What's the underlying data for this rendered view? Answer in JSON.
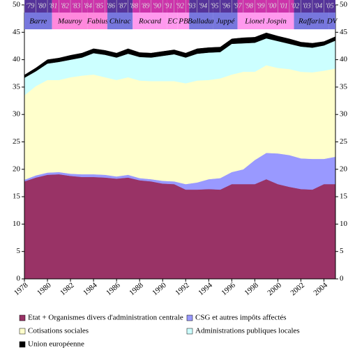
{
  "chart_data": {
    "type": "stacked_area",
    "x": [
      1978,
      1979,
      1980,
      1981,
      1982,
      1983,
      1984,
      1985,
      1986,
      1987,
      1988,
      1989,
      1990,
      1991,
      1992,
      1993,
      1994,
      1995,
      1996,
      1997,
      1998,
      1999,
      2000,
      2001,
      2002,
      2003,
      2004,
      2005
    ],
    "xlim": [
      1978,
      2005
    ],
    "xticks": [
      1978,
      1980,
      1982,
      1984,
      1986,
      1988,
      1990,
      1992,
      1994,
      1996,
      1998,
      2000,
      2002,
      2004
    ],
    "ylim": [
      0,
      50
    ],
    "yticks": [
      0,
      5,
      10,
      15,
      20,
      25,
      30,
      35,
      40,
      45,
      50
    ],
    "series": [
      {
        "name": "Etat + Organismes divers d'administration centrale",
        "color": "#993366",
        "values": [
          17.8,
          18.5,
          19.0,
          19.1,
          18.8,
          18.6,
          18.6,
          18.5,
          18.3,
          18.5,
          18.0,
          17.8,
          17.4,
          17.3,
          16.3,
          16.3,
          16.4,
          16.3,
          17.3,
          17.3,
          17.3,
          18.2,
          17.3,
          16.8,
          16.4,
          16.3,
          17.3,
          17.3
        ]
      },
      {
        "name": "CSG et autres impôts affectés",
        "color": "#9999ff",
        "values": [
          0.3,
          0.4,
          0.4,
          0.4,
          0.4,
          0.5,
          0.5,
          0.5,
          0.4,
          0.5,
          0.4,
          0.4,
          0.5,
          0.5,
          1.0,
          1.3,
          1.8,
          2.1,
          2.2,
          2.7,
          4.4,
          4.8,
          5.6,
          5.8,
          5.6,
          5.6,
          4.6,
          5.0
        ]
      },
      {
        "name": "Cotisations sociales",
        "color": "#ffffcc",
        "values": [
          15.4,
          16.3,
          16.9,
          16.8,
          17.6,
          18.0,
          18.2,
          17.8,
          17.6,
          17.8,
          17.8,
          17.9,
          18.2,
          18.3,
          18.4,
          18.6,
          18.1,
          18.2,
          17.8,
          17.8,
          16.1,
          16.0,
          15.6,
          15.7,
          15.8,
          15.8,
          16.1,
          16.1
        ]
      },
      {
        "name": "Administrations publiques locales",
        "color": "#ccffff",
        "values": [
          3.2,
          2.7,
          3.0,
          3.3,
          3.2,
          3.3,
          3.9,
          4.1,
          4.1,
          4.3,
          4.3,
          4.3,
          4.6,
          4.9,
          4.7,
          4.9,
          5.0,
          4.8,
          5.6,
          5.2,
          5.3,
          4.9,
          4.9,
          4.6,
          4.6,
          4.5,
          4.6,
          5.1
        ]
      },
      {
        "name": "Union européenne",
        "color": "#000000",
        "values": [
          0.5,
          0.6,
          0.7,
          0.7,
          0.8,
          0.8,
          0.8,
          0.8,
          0.8,
          0.9,
          0.8,
          0.8,
          0.8,
          0.8,
          0.8,
          0.9,
          0.9,
          0.9,
          0.9,
          1.0,
          1.0,
          1.0,
          0.9,
          0.9,
          0.8,
          0.8,
          0.7,
          0.7
        ]
      }
    ],
    "year_labels": [
      "'79",
      "'80",
      "'81",
      "'82",
      "'83",
      "'84",
      "'85",
      "'86",
      "'87",
      "'88",
      "'89",
      "'90",
      "'91",
      "'92",
      "'93",
      "'94",
      "'95",
      "'96",
      "'97",
      "'98",
      "'99",
      "'00",
      "'01",
      "'02",
      "'03",
      "'04",
      "'05"
    ],
    "governments": [
      {
        "name": "Barre",
        "start": 1979,
        "end": 1981.4,
        "color": "#7777dd",
        "year_color": "#553399"
      },
      {
        "name": "Mauroy",
        "start": 1981.4,
        "end": 1984.5,
        "color": "#ff88dd",
        "year_color": "#cc33aa"
      },
      {
        "name": "Fabius",
        "start": 1984.5,
        "end": 1986.2,
        "color": "#ff88dd",
        "year_color": "#cc33aa"
      },
      {
        "name": "Chirac",
        "start": 1986.2,
        "end": 1988.4,
        "color": "#7777dd",
        "year_color": "#553399"
      },
      {
        "name": "Rocard",
        "start": 1988.4,
        "end": 1991.4,
        "color": "#ff99ee",
        "year_color": "#cc33aa"
      },
      {
        "name": "EC",
        "start": 1991.4,
        "end": 1992.3,
        "color": "#ff99ee",
        "year_color": "#cc33aa"
      },
      {
        "name": "PB",
        "start": 1992.3,
        "end": 1993.3,
        "color": "#ff99ee",
        "year_color": "#cc33aa"
      },
      {
        "name": "Balladur",
        "start": 1993.3,
        "end": 1995.4,
        "color": "#7777dd",
        "year_color": "#553399"
      },
      {
        "name": "Juppé",
        "start": 1995.4,
        "end": 1997.5,
        "color": "#7777dd",
        "year_color": "#553399"
      },
      {
        "name": "Lionel Jospin",
        "start": 1997.5,
        "end": 2002.4,
        "color": "#ff99ee",
        "year_color": "#cc33aa"
      },
      {
        "name": "Raffarin",
        "start": 2002.4,
        "end": 2005.4,
        "color": "#7777dd",
        "year_color": "#553399"
      },
      {
        "name": "DV",
        "start": 2005.4,
        "end": 2006,
        "color": "#7777dd",
        "year_color": "#553399"
      }
    ]
  }
}
